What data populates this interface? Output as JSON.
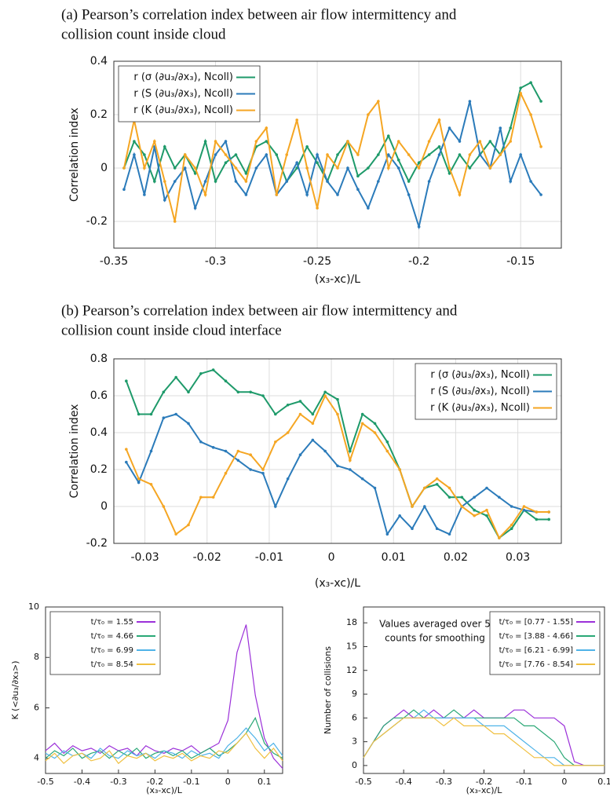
{
  "chart_data": [
    {
      "type": "line",
      "title": [
        "(a) Pearson’s correlation index between air flow intermittency and",
        "collision count inside cloud"
      ],
      "x_label": "(x₃-xc)/L",
      "y_label": "Correlation index",
      "xlim": [
        -0.35,
        -0.13
      ],
      "xticks": [
        -0.35,
        -0.3,
        -0.25,
        -0.2,
        -0.15
      ],
      "ylim": [
        -0.3,
        0.4
      ],
      "yticks": [
        -0.2,
        0,
        0.2,
        0.4
      ],
      "grid": true,
      "markers": true,
      "legend": "upper left",
      "x": [
        -0.345,
        -0.34,
        -0.335,
        -0.33,
        -0.325,
        -0.32,
        -0.315,
        -0.31,
        -0.305,
        -0.3,
        -0.295,
        -0.29,
        -0.285,
        -0.28,
        -0.275,
        -0.27,
        -0.265,
        -0.26,
        -0.255,
        -0.25,
        -0.245,
        -0.24,
        -0.235,
        -0.23,
        -0.225,
        -0.22,
        -0.215,
        -0.21,
        -0.205,
        -0.2,
        -0.195,
        -0.19,
        -0.185,
        -0.18,
        -0.175,
        -0.17,
        -0.165,
        -0.16,
        -0.155,
        -0.15,
        -0.145,
        -0.14
      ],
      "series": [
        {
          "name": "r (σ (∂u₃/∂x₃), Ncoll)",
          "color": "#1e9a6a",
          "values": [
            0.0,
            0.1,
            0.05,
            -0.05,
            0.08,
            0.0,
            0.05,
            -0.02,
            0.1,
            -0.05,
            0.02,
            0.05,
            -0.02,
            0.08,
            0.1,
            0.05,
            -0.05,
            0.0,
            0.08,
            0.02,
            -0.05,
            0.05,
            0.1,
            -0.03,
            0.0,
            0.05,
            0.12,
            0.03,
            -0.05,
            0.02,
            0.05,
            0.08,
            -0.02,
            0.05,
            0.0,
            0.05,
            0.1,
            0.05,
            0.15,
            0.3,
            0.32,
            0.25
          ]
        },
        {
          "name": "r (S (∂u₃/∂x₃), Ncoll)",
          "color": "#2b7bba",
          "values": [
            -0.08,
            0.05,
            -0.1,
            0.08,
            -0.12,
            -0.05,
            0.0,
            -0.15,
            -0.05,
            0.05,
            0.1,
            -0.05,
            -0.1,
            0.0,
            0.05,
            -0.1,
            -0.05,
            0.02,
            -0.1,
            0.05,
            -0.05,
            -0.1,
            0.0,
            -0.08,
            -0.15,
            -0.05,
            0.05,
            0.0,
            -0.1,
            -0.22,
            -0.05,
            0.05,
            0.15,
            0.1,
            0.25,
            0.05,
            0.0,
            0.15,
            -0.05,
            0.05,
            -0.05,
            -0.1
          ]
        },
        {
          "name": "r (K (∂u₃/∂x₃), Ncoll)",
          "color": "#f5a623",
          "values": [
            0.0,
            0.18,
            0.0,
            0.1,
            -0.05,
            -0.2,
            0.05,
            0.0,
            -0.1,
            0.1,
            0.05,
            0.0,
            -0.05,
            0.1,
            0.15,
            -0.1,
            0.05,
            0.18,
            0.0,
            -0.15,
            0.05,
            0.0,
            0.1,
            0.05,
            0.2,
            0.25,
            0.0,
            0.1,
            0.05,
            0.0,
            0.1,
            0.18,
            0.0,
            -0.1,
            0.05,
            0.1,
            0.0,
            0.05,
            0.1,
            0.28,
            0.2,
            0.08
          ]
        }
      ]
    },
    {
      "type": "line",
      "title": [
        "(b) Pearson’s correlation index between air flow intermittency and",
        "collision count inside cloud interface"
      ],
      "x_label": "(x₃-xc)/L",
      "y_label": "Correlation index",
      "xlim": [
        -0.035,
        0.037
      ],
      "xticks": [
        -0.03,
        -0.02,
        -0.01,
        0,
        0.01,
        0.02,
        0.03
      ],
      "ylim": [
        -0.2,
        0.8
      ],
      "yticks": [
        -0.2,
        0,
        0.2,
        0.4,
        0.6,
        0.8
      ],
      "grid": true,
      "markers": true,
      "legend": "upper right",
      "x": [
        -0.033,
        -0.031,
        -0.029,
        -0.027,
        -0.025,
        -0.023,
        -0.021,
        -0.019,
        -0.017,
        -0.015,
        -0.013,
        -0.011,
        -0.009,
        -0.007,
        -0.005,
        -0.003,
        -0.001,
        0.001,
        0.003,
        0.005,
        0.007,
        0.009,
        0.011,
        0.013,
        0.015,
        0.017,
        0.019,
        0.021,
        0.023,
        0.025,
        0.027,
        0.029,
        0.031,
        0.033,
        0.035
      ],
      "series": [
        {
          "name": "r (σ (∂u₃/∂x₃), Ncoll)",
          "color": "#1e9a6a",
          "values": [
            0.68,
            0.5,
            0.5,
            0.62,
            0.7,
            0.62,
            0.72,
            0.74,
            0.68,
            0.62,
            0.62,
            0.6,
            0.5,
            0.55,
            0.57,
            0.5,
            0.62,
            0.58,
            0.3,
            0.5,
            0.45,
            0.35,
            0.2,
            0.0,
            0.1,
            0.12,
            0.05,
            0.05,
            -0.02,
            -0.05,
            -0.17,
            -0.12,
            -0.02,
            -0.07,
            -0.07
          ]
        },
        {
          "name": "r (S (∂u₃/∂x₃), Ncoll)",
          "color": "#2b7bba",
          "values": [
            0.24,
            0.13,
            0.3,
            0.48,
            0.5,
            0.45,
            0.35,
            0.32,
            0.3,
            0.25,
            0.2,
            0.18,
            0.0,
            0.15,
            0.28,
            0.36,
            0.3,
            0.22,
            0.2,
            0.15,
            0.1,
            -0.15,
            -0.05,
            -0.12,
            0.0,
            -0.12,
            -0.15,
            0.0,
            0.05,
            0.1,
            0.05,
            0.0,
            -0.02,
            -0.03,
            -0.03
          ]
        },
        {
          "name": "r (K (∂u₃/∂x₃), Ncoll)",
          "color": "#f5a623",
          "values": [
            0.31,
            0.15,
            0.12,
            0.0,
            -0.15,
            -0.1,
            0.05,
            0.05,
            0.18,
            0.3,
            0.28,
            0.2,
            0.35,
            0.4,
            0.5,
            0.45,
            0.6,
            0.5,
            0.25,
            0.45,
            0.4,
            0.3,
            0.2,
            0.0,
            0.1,
            0.15,
            0.1,
            0.0,
            -0.05,
            -0.02,
            -0.17,
            -0.1,
            0.0,
            -0.03,
            -0.03
          ]
        }
      ]
    },
    {
      "type": "line",
      "x_label": "(x₃-xc)/L",
      "y_label": "K (<∂u₃/∂x₃>)",
      "xlim": [
        -0.5,
        0.15
      ],
      "xticks": [
        -0.5,
        -0.4,
        -0.3,
        -0.2,
        -0.1,
        0,
        0.1
      ],
      "ylim": [
        3.4,
        10
      ],
      "yticks": [
        4,
        6,
        8,
        10
      ],
      "grid": false,
      "markers": false,
      "legend": "upper left",
      "x": [
        -0.5,
        -0.475,
        -0.45,
        -0.425,
        -0.4,
        -0.375,
        -0.35,
        -0.325,
        -0.3,
        -0.275,
        -0.25,
        -0.225,
        -0.2,
        -0.175,
        -0.15,
        -0.125,
        -0.1,
        -0.075,
        -0.05,
        -0.025,
        0,
        0.025,
        0.05,
        0.075,
        0.1,
        0.125,
        0.15
      ],
      "series": [
        {
          "name": "t/τ₀ = 1.55",
          "color": "#9b30d9",
          "values": [
            4.3,
            4.6,
            4.2,
            4.5,
            4.3,
            4.4,
            4.2,
            4.5,
            4.3,
            4.4,
            4.1,
            4.5,
            4.3,
            4.2,
            4.4,
            4.3,
            4.5,
            4.2,
            4.4,
            4.6,
            5.5,
            8.2,
            9.3,
            6.5,
            4.8,
            4.0,
            3.6
          ]
        },
        {
          "name": "t/τ₀ = 4.66",
          "color": "#2aa876",
          "values": [
            4.0,
            4.3,
            4.1,
            4.4,
            4.0,
            4.2,
            4.3,
            4.0,
            4.3,
            4.1,
            4.4,
            4.0,
            4.2,
            4.3,
            4.1,
            4.3,
            4.0,
            4.2,
            4.4,
            4.1,
            4.3,
            4.6,
            5.0,
            5.6,
            4.6,
            4.2,
            4.0
          ]
        },
        {
          "name": "t/τ₀ = 6.99",
          "color": "#4fb3e8",
          "values": [
            4.2,
            4.0,
            4.3,
            4.1,
            4.2,
            4.0,
            4.4,
            4.1,
            4.0,
            4.3,
            4.1,
            4.2,
            4.0,
            4.3,
            4.2,
            4.0,
            4.3,
            4.1,
            4.2,
            4.0,
            4.5,
            4.8,
            5.2,
            4.8,
            4.3,
            4.6,
            4.1
          ]
        },
        {
          "name": "t/τ₀ = 8.54",
          "color": "#f0c040",
          "values": [
            3.9,
            4.2,
            3.8,
            4.1,
            4.2,
            3.9,
            4.0,
            4.3,
            3.8,
            4.1,
            4.0,
            4.2,
            3.9,
            4.1,
            4.0,
            4.2,
            3.9,
            4.1,
            4.0,
            4.3,
            4.2,
            4.6,
            5.0,
            4.4,
            4.0,
            4.4,
            3.9
          ]
        }
      ]
    },
    {
      "type": "line",
      "x_label": "(x₃-xc)/L",
      "y_label": "Number of collisions",
      "annotation": [
        "Values averaged over 5",
        "counts for smoothing"
      ],
      "xlim": [
        -0.5,
        0.1
      ],
      "xticks": [
        -0.5,
        -0.4,
        -0.3,
        -0.2,
        -0.1,
        0,
        0.1
      ],
      "ylim": [
        -1,
        20
      ],
      "yticks": [
        0,
        3,
        6,
        9,
        12,
        15,
        18
      ],
      "grid": false,
      "markers": false,
      "legend": "upper right",
      "x": [
        -0.5,
        -0.475,
        -0.45,
        -0.425,
        -0.4,
        -0.375,
        -0.35,
        -0.325,
        -0.3,
        -0.275,
        -0.25,
        -0.225,
        -0.2,
        -0.175,
        -0.15,
        -0.125,
        -0.1,
        -0.075,
        -0.05,
        -0.025,
        0,
        0.025,
        0.05,
        0.075,
        0.1
      ],
      "series": [
        {
          "name": "t/τ₀ = [0.77 - 1.55]",
          "color": "#9b30d9",
          "values": [
            1,
            3,
            5,
            6,
            7,
            6,
            6,
            7,
            6,
            6,
            6,
            7,
            6,
            6,
            6,
            7,
            7,
            6,
            6,
            6,
            5,
            0.5,
            0,
            0,
            0
          ]
        },
        {
          "name": "t/τ₀ = [3.88 - 4.66]",
          "color": "#2aa876",
          "values": [
            1,
            3,
            5,
            6,
            6,
            7,
            6,
            6,
            6,
            7,
            6,
            6,
            6,
            6,
            6,
            6,
            5,
            5,
            4,
            3,
            1,
            0,
            0,
            0,
            0
          ]
        },
        {
          "name": "t/τ₀ = [6.21 - 6.99]",
          "color": "#4fb3e8",
          "values": [
            1,
            3,
            4,
            5,
            6,
            6,
            7,
            6,
            6,
            6,
            6,
            6,
            5,
            5,
            5,
            4,
            3,
            2,
            1,
            1,
            0,
            0,
            0,
            0,
            0
          ]
        },
        {
          "name": "t/τ₀ = [7.76 - 8.54]",
          "color": "#f0c040",
          "values": [
            1,
            3,
            4,
            5,
            6,
            6,
            6,
            6,
            5,
            6,
            5,
            5,
            5,
            4,
            4,
            3,
            2,
            1,
            1,
            0,
            0,
            0,
            0,
            0,
            0
          ]
        }
      ]
    }
  ]
}
